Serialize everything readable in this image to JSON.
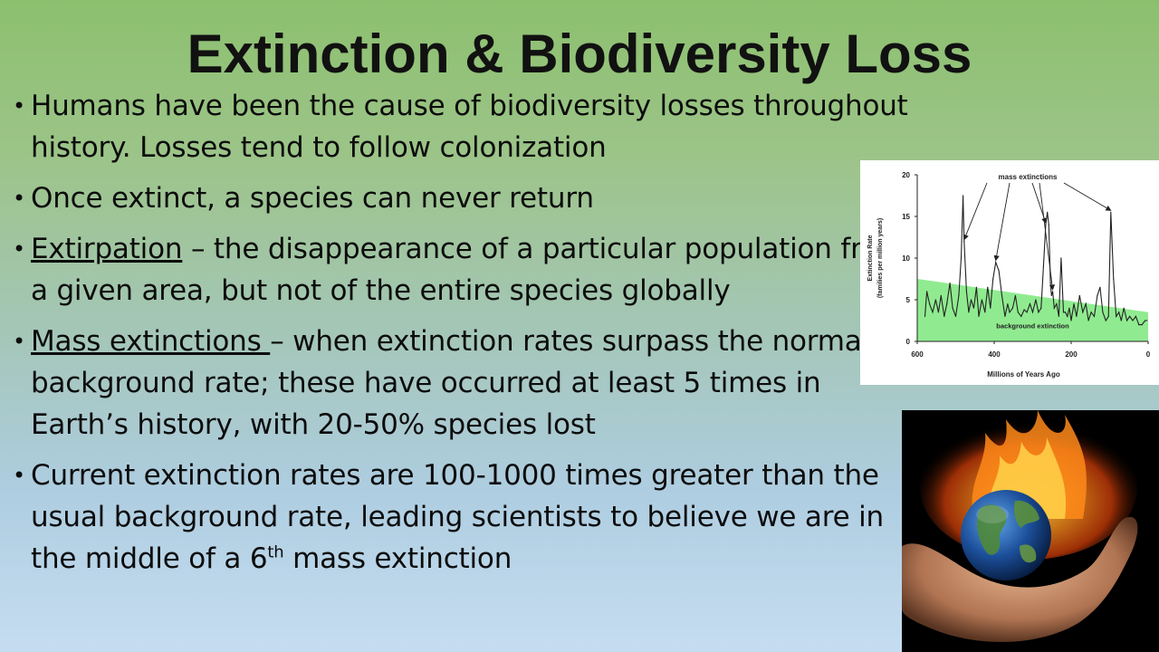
{
  "slide": {
    "title": "Extinction & Biodiversity Loss",
    "bullets": [
      {
        "text": "Humans have been the cause of biodiversity losses throughout history. Losses tend to follow colonization"
      },
      {
        "text": "Once extinct, a species can never return"
      },
      {
        "term": "Extirpation",
        "text": " – the disappearance of a particular population from a given area, but not of the entire species globally"
      },
      {
        "term": "Mass extinctions ",
        "text": "– when extinction rates surpass the normal background rate; these have occurred at least 5 times in Earth’s history, with 20-50% species lost"
      },
      {
        "text": "Current extinction rates are 100-1000 times greater than the usual background rate, leading scientists to believe we are in the middle of a 6",
        "sup": "th",
        "tail": " mass extinction"
      }
    ]
  },
  "chart_data": {
    "type": "line",
    "xlabel": "Millions of Years Ago",
    "ylabel": "Extinction Rate (families per million years)",
    "ylabel_line1": "Extinction Rate",
    "ylabel_line2": "(families per million years)",
    "xlim": [
      600,
      0
    ],
    "ylim": [
      0,
      20
    ],
    "x_ticks": [
      "600",
      "400",
      "200",
      "0"
    ],
    "y_ticks": [
      "0",
      "5",
      "10",
      "15",
      "20"
    ],
    "x": [
      580,
      575,
      568,
      560,
      552,
      545,
      538,
      530,
      523,
      515,
      508,
      500,
      492,
      486,
      481,
      478,
      472,
      466,
      460,
      453,
      446,
      440,
      432,
      424,
      417,
      410,
      403,
      396,
      388,
      380,
      372,
      365,
      360,
      352,
      345,
      338,
      330,
      322,
      315,
      307,
      300,
      292,
      285,
      278,
      272,
      266,
      262,
      258,
      254,
      251,
      248,
      244,
      238,
      232,
      226,
      220,
      215,
      210,
      205,
      200,
      193,
      186,
      178,
      170,
      162,
      155,
      148,
      140,
      132,
      125,
      118,
      110,
      103,
      97,
      90,
      83,
      76,
      70,
      63,
      55,
      48,
      40,
      32,
      24,
      16,
      8,
      3
    ],
    "values": [
      3.0,
      6.0,
      4.5,
      3.5,
      5.0,
      3.5,
      5.5,
      3.0,
      4.5,
      7.0,
      4.0,
      3.0,
      5.5,
      10.0,
      17.5,
      12.0,
      6.0,
      3.5,
      5.0,
      4.0,
      6.5,
      3.0,
      5.0,
      3.5,
      6.5,
      4.0,
      7.5,
      9.5,
      8.5,
      5.5,
      3.0,
      4.5,
      3.5,
      4.0,
      5.5,
      3.5,
      3.0,
      3.8,
      3.5,
      4.5,
      3.5,
      5.0,
      3.5,
      4.0,
      9.0,
      14.0,
      15.5,
      14.0,
      7.0,
      5.5,
      6.0,
      4.0,
      4.5,
      3.0,
      10.0,
      3.5,
      3.5,
      3.0,
      4.0,
      2.5,
      4.5,
      3.0,
      5.5,
      3.5,
      4.5,
      2.5,
      3.5,
      3.0,
      5.5,
      6.5,
      3.5,
      2.5,
      3.0,
      15.5,
      7.5,
      3.0,
      3.5,
      2.5,
      4.0,
      2.5,
      3.0,
      2.5,
      3.0,
      2.0,
      2.0,
      2.5,
      2.5
    ],
    "background_band": {
      "label": "background extinction",
      "x": [
        600,
        0
      ],
      "upper": [
        7.5,
        3.5
      ],
      "lower": [
        0,
        0
      ],
      "color": "#7ce87c"
    },
    "annotations": [
      {
        "label": "mass extinctions",
        "targets_x": [
          478,
          396,
          266,
          248,
          97
        ]
      }
    ],
    "colors": {
      "line": "#222222",
      "band": "#7ce87c"
    },
    "grid": false,
    "legend": "none"
  }
}
